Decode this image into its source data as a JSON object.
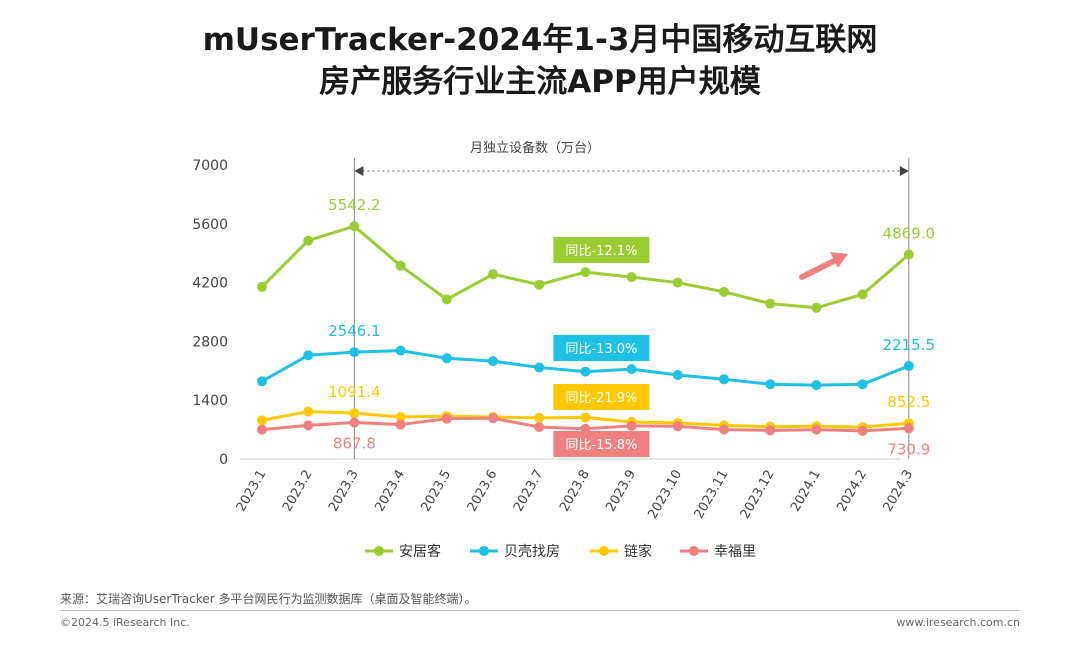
{
  "title_line1": "mUserTracker-2024年1-3月中国移动互联网",
  "title_line2": "房产服务行业主流APP用户规模",
  "source": "来源：艾瑞咨询UserTracker 多平台网民行为监测数据库（桌面及智能终端）。",
  "copyright": "©2024.5 iResearch Inc.",
  "website": "www.iresearch.com.cn",
  "chart_data": {
    "type": "line",
    "title": "月独立设备数（万台）",
    "categories": [
      "2023.1",
      "2023.2",
      "2023.3",
      "2023.4",
      "2023.5",
      "2023.6",
      "2023.7",
      "2023.8",
      "2023.9",
      "2023.10",
      "2023.11",
      "2023.12",
      "2024.1",
      "2024.2",
      "2024.3"
    ],
    "ylim": [
      0,
      7000
    ],
    "yticks": [
      0,
      1400,
      2800,
      4200,
      5600,
      7000
    ],
    "series": [
      {
        "name": "安居客",
        "color": "#9ACD32",
        "values": [
          4100,
          5200,
          5542.2,
          4600,
          3800,
          4400,
          4150,
          4450,
          4330,
          4200,
          3980,
          3700,
          3600,
          3920,
          4869.0
        ],
        "labels": [
          {
            "index": 2,
            "text": "5542.2",
            "pos": "above"
          },
          {
            "index": 14,
            "text": "4869.0",
            "pos": "above"
          }
        ],
        "yoy": "同比-12.1%"
      },
      {
        "name": "贝壳找房",
        "color": "#1EC0E6",
        "values": [
          1850,
          2470,
          2546.1,
          2580,
          2400,
          2330,
          2180,
          2080,
          2140,
          2000,
          1900,
          1780,
          1760,
          1780,
          2215.5
        ],
        "labels": [
          {
            "index": 2,
            "text": "2546.1",
            "pos": "above"
          },
          {
            "index": 14,
            "text": "2215.5",
            "pos": "above"
          }
        ],
        "yoy": "同比-13.0%"
      },
      {
        "name": "链家",
        "color": "#FFC800",
        "values": [
          920,
          1130,
          1091.4,
          1000,
          1020,
          1000,
          980,
          990,
          880,
          860,
          800,
          770,
          780,
          760,
          852.5
        ],
        "labels": [
          {
            "index": 2,
            "text": "1091.4",
            "pos": "above"
          },
          {
            "index": 14,
            "text": "852.5",
            "pos": "above"
          }
        ],
        "yoy": "同比-21.9%"
      },
      {
        "name": "幸福里",
        "color": "#F08080",
        "values": [
          700,
          800,
          867.8,
          820,
          960,
          970,
          760,
          720,
          790,
          780,
          700,
          680,
          700,
          670,
          730.9
        ],
        "labels": [
          {
            "index": 2,
            "text": "867.8",
            "pos": "below"
          },
          {
            "index": 14,
            "text": "730.9",
            "pos": "below"
          }
        ],
        "yoy": "同比-15.8%"
      }
    ]
  }
}
